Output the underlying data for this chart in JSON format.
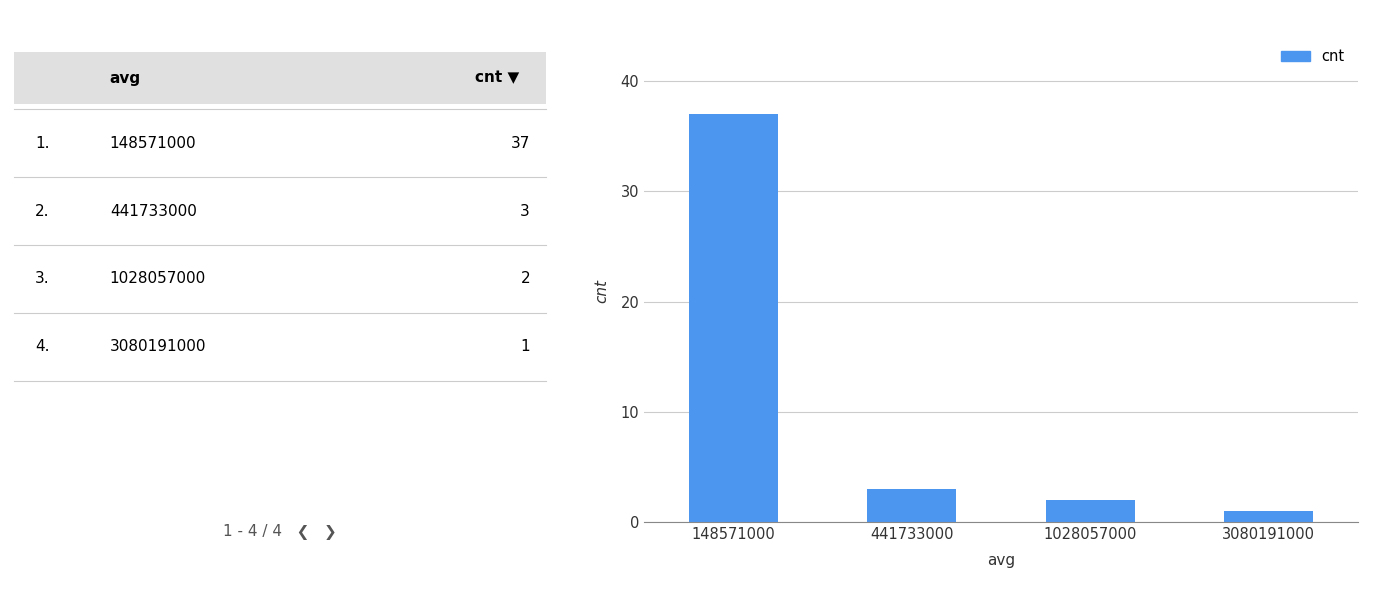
{
  "categories": [
    "148571000",
    "441733000",
    "1028057000",
    "3080191000"
  ],
  "values": [
    37,
    3,
    2,
    1
  ],
  "bar_color": "#4d96f0",
  "xlabel": "avg",
  "ylabel": "cnt",
  "ylim": [
    0,
    42
  ],
  "yticks": [
    0,
    10,
    20,
    30,
    40
  ],
  "legend_label": "cnt",
  "legend_color": "#4d96f0",
  "table_rows": [
    {
      "idx": "1.",
      "avg": "148571000",
      "cnt": "37"
    },
    {
      "idx": "2.",
      "avg": "441733000",
      "cnt": "3"
    },
    {
      "idx": "3.",
      "avg": "1028057000",
      "cnt": "2"
    },
    {
      "idx": "4.",
      "avg": "3080191000",
      "cnt": "1"
    }
  ],
  "table_header_avg": "avg",
  "table_header_cnt": "cnt",
  "pagination_text": "1 - 4 / 4",
  "background_color": "#ffffff",
  "grid_color": "#cccccc",
  "table_header_bg": "#e0e0e0",
  "table_sep_color": "#cccccc"
}
